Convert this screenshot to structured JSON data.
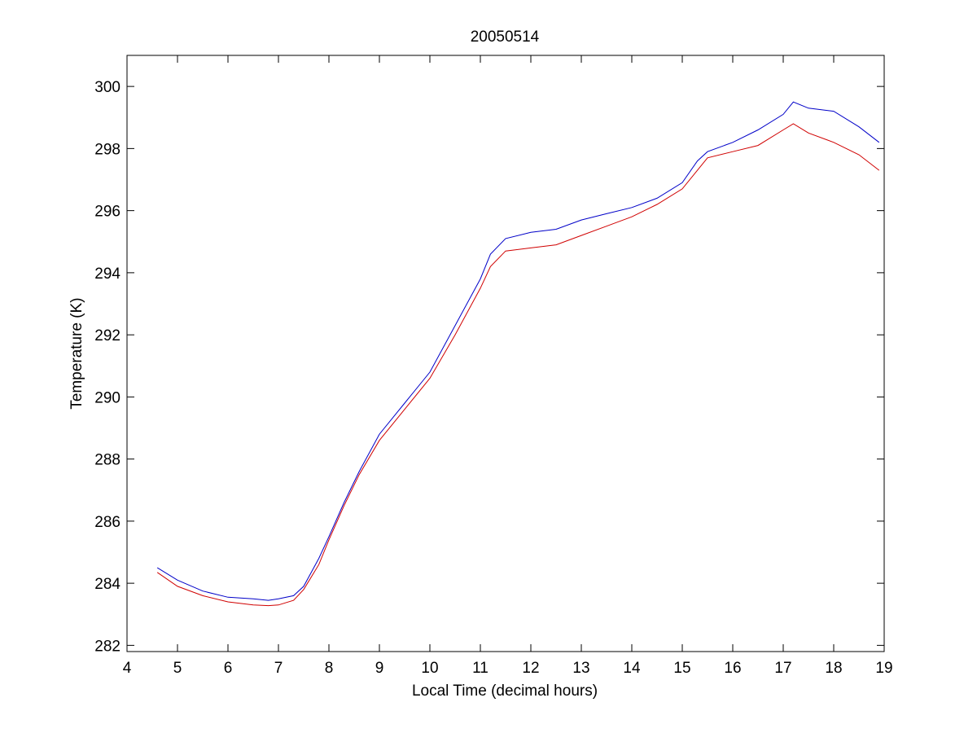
{
  "chart_data": {
    "type": "line",
    "title": "20050514",
    "xlabel": "Local Time (decimal hours)",
    "ylabel": "Temperature (K)",
    "xlim": [
      4,
      19
    ],
    "ylim": [
      281.8,
      301
    ],
    "xticks": [
      4,
      5,
      6,
      7,
      8,
      9,
      10,
      11,
      12,
      13,
      14,
      15,
      16,
      17,
      18,
      19
    ],
    "yticks": [
      282,
      284,
      286,
      288,
      290,
      292,
      294,
      296,
      298,
      300
    ],
    "grid": false,
    "legend": "none",
    "series": [
      {
        "color": "#0000c8",
        "x": [
          4.6,
          5.0,
          5.5,
          6.0,
          6.5,
          6.8,
          7.0,
          7.3,
          7.5,
          7.8,
          8.0,
          8.3,
          8.6,
          9.0,
          9.5,
          10.0,
          10.5,
          11.0,
          11.2,
          11.5,
          12.0,
          12.5,
          13.0,
          13.5,
          14.0,
          14.5,
          15.0,
          15.3,
          15.5,
          16.0,
          16.5,
          17.0,
          17.2,
          17.5,
          18.0,
          18.5,
          18.9
        ],
        "y": [
          284.5,
          284.1,
          283.75,
          283.55,
          283.5,
          283.45,
          283.5,
          283.6,
          283.9,
          284.8,
          285.5,
          286.6,
          287.6,
          288.8,
          289.8,
          290.8,
          292.3,
          293.8,
          294.6,
          295.1,
          295.3,
          295.4,
          295.7,
          295.9,
          296.1,
          296.4,
          296.9,
          297.6,
          297.9,
          298.2,
          298.6,
          299.1,
          299.5,
          299.3,
          299.2,
          298.7,
          298.2
        ]
      },
      {
        "color": "#d00000",
        "x": [
          4.6,
          5.0,
          5.5,
          6.0,
          6.5,
          6.8,
          7.0,
          7.3,
          7.5,
          7.8,
          8.0,
          8.3,
          8.6,
          9.0,
          9.5,
          10.0,
          10.5,
          11.0,
          11.2,
          11.5,
          12.0,
          12.5,
          13.0,
          13.5,
          14.0,
          14.5,
          15.0,
          15.3,
          15.5,
          16.0,
          16.5,
          17.0,
          17.2,
          17.5,
          18.0,
          18.5,
          18.9
        ],
        "y": [
          284.35,
          283.9,
          283.6,
          283.4,
          283.3,
          283.28,
          283.3,
          283.45,
          283.8,
          284.6,
          285.4,
          286.5,
          287.5,
          288.6,
          289.6,
          290.6,
          292.0,
          293.5,
          294.2,
          294.7,
          294.8,
          294.9,
          295.2,
          295.5,
          295.8,
          296.2,
          296.7,
          297.3,
          297.7,
          297.9,
          298.1,
          298.6,
          298.8,
          298.5,
          298.2,
          297.8,
          297.3
        ]
      }
    ]
  }
}
